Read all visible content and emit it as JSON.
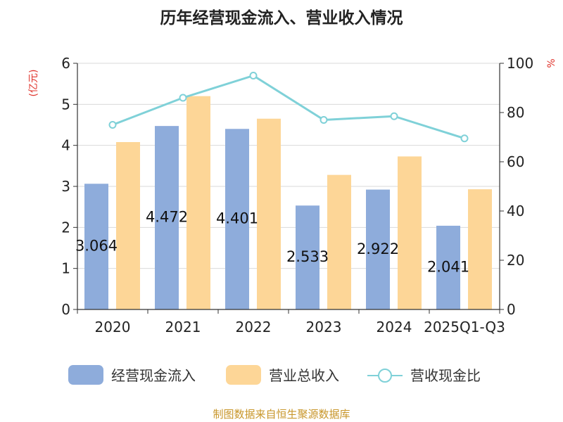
{
  "chart_data": {
    "type": "bar",
    "title": "历年经营现金流入、营业收入情况",
    "categories": [
      "2020",
      "2021",
      "2022",
      "2023",
      "2024",
      "2025Q1-Q3"
    ],
    "series": [
      {
        "name": "经营现金流入",
        "type": "bar",
        "axis": "left",
        "color": "#8eacdb",
        "values": [
          3.064,
          4.472,
          4.401,
          2.533,
          2.922,
          2.041
        ],
        "labels": [
          "3.064",
          "4.472",
          "4.401",
          "2.533",
          "2.922",
          "2.041"
        ]
      },
      {
        "name": "营业总收入",
        "type": "bar",
        "axis": "left",
        "color": "#fdd697",
        "values": [
          4.08,
          5.2,
          4.65,
          3.28,
          3.73,
          2.93
        ]
      },
      {
        "name": "营收现金比",
        "type": "line",
        "axis": "right",
        "color": "#7fd1d8",
        "values": [
          75,
          86,
          95,
          77,
          78.5,
          69.5
        ]
      }
    ],
    "ylabel_left": "(亿元)",
    "ylabel_right": "%",
    "ylim_left": [
      0,
      6
    ],
    "yticks_left": [
      "0",
      "1",
      "2",
      "3",
      "4",
      "5",
      "6"
    ],
    "ylim_right": [
      0,
      100
    ],
    "yticks_right": [
      "0",
      "20",
      "40",
      "60",
      "80",
      "100"
    ],
    "grid": true,
    "legend": "bottom-center",
    "footer": "制图数据来自恒生聚源数据库"
  },
  "colors": {
    "axis_label_red": "#e0342c",
    "footer": "#c8962a",
    "grid": "#d9d9d9",
    "axis": "#333333"
  }
}
